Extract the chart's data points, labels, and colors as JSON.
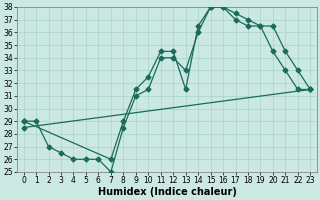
{
  "xlabel": "Humidex (Indice chaleur)",
  "ylabel": "",
  "bg_color": "#cbe8e2",
  "line_color": "#1a6b5a",
  "grid_color": "#a8d5cc",
  "ylim": [
    25,
    38
  ],
  "xlim": [
    -0.5,
    23.5
  ],
  "yticks": [
    25,
    26,
    27,
    28,
    29,
    30,
    31,
    32,
    33,
    34,
    35,
    36,
    37,
    38
  ],
  "xticks": [
    0,
    1,
    2,
    3,
    4,
    5,
    6,
    7,
    8,
    9,
    10,
    11,
    12,
    13,
    14,
    15,
    16,
    17,
    18,
    19,
    20,
    21,
    22,
    23
  ],
  "line1_x": [
    0,
    1,
    2,
    3,
    4,
    5,
    6,
    7,
    8,
    9,
    10,
    11,
    12,
    13,
    14,
    15,
    16,
    17,
    18,
    19,
    20,
    21,
    22,
    23
  ],
  "line1_y": [
    29.0,
    29.0,
    27.0,
    26.5,
    26.0,
    26.0,
    26.0,
    25.0,
    28.5,
    31.0,
    31.5,
    34.0,
    34.0,
    33.0,
    36.0,
    38.0,
    38.0,
    37.5,
    37.0,
    36.5,
    34.5,
    33.0,
    31.5,
    31.5
  ],
  "line2_x": [
    0,
    7,
    8,
    9,
    10,
    11,
    12,
    13,
    14,
    15,
    16,
    17,
    18,
    19,
    20,
    21,
    22,
    23
  ],
  "line2_y": [
    29.0,
    26.0,
    29.0,
    31.5,
    32.5,
    34.5,
    34.5,
    31.5,
    36.5,
    38.0,
    38.0,
    37.0,
    36.5,
    36.5,
    36.5,
    34.5,
    33.0,
    31.5
  ],
  "line3_x": [
    0,
    23
  ],
  "line3_y": [
    28.5,
    31.5
  ],
  "marker": "D",
  "markersize": 2.5,
  "linewidth": 0.9,
  "xlabel_fontsize": 7,
  "tick_fontsize": 5.5
}
